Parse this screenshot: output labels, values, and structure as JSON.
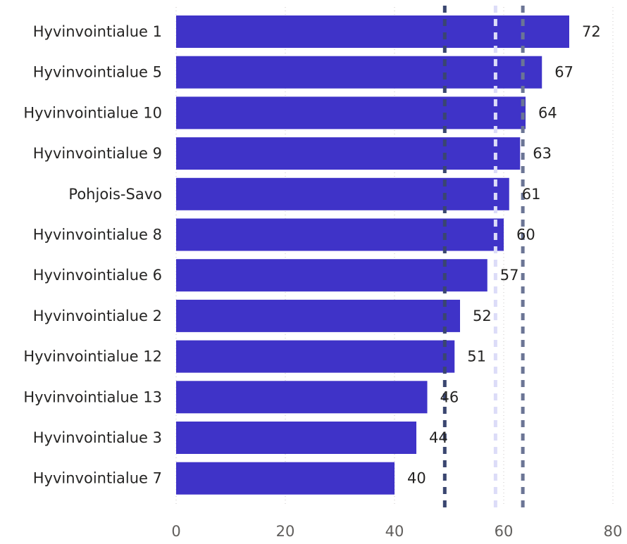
{
  "chart_data": {
    "type": "bar",
    "orientation": "horizontal",
    "categories": [
      "Hyvinvointialue 1",
      "Hyvinvointialue 5",
      "Hyvinvointialue 10",
      "Hyvinvointialue 9",
      "Pohjois-Savo",
      "Hyvinvointialue 8",
      "Hyvinvointialue 6",
      "Hyvinvointialue 2",
      "Hyvinvointialue 12",
      "Hyvinvointialue 13",
      "Hyvinvointialue 3",
      "Hyvinvointialue 7"
    ],
    "values": [
      72,
      67,
      64,
      63,
      61,
      60,
      57,
      52,
      51,
      46,
      44,
      40
    ],
    "data_labels": [
      "72",
      "67",
      "64",
      "63",
      "61",
      "60",
      "57",
      "52",
      "51",
      "46",
      "44",
      "40"
    ],
    "xlim": [
      0,
      80
    ],
    "x_ticks": [
      0,
      20,
      40,
      60,
      80
    ],
    "x_tick_labels": [
      "0",
      "20",
      "40",
      "60",
      "80"
    ],
    "grid": true,
    "bar_color": "#3f33c8",
    "reference_lines": [
      {
        "value": 49.2,
        "color": "#3a4670",
        "style": "dashed"
      },
      {
        "value": 58.5,
        "color": "#dcdcf8",
        "style": "dashed"
      },
      {
        "value": 63.5,
        "color": "#6b7595",
        "style": "dashed"
      }
    ]
  }
}
